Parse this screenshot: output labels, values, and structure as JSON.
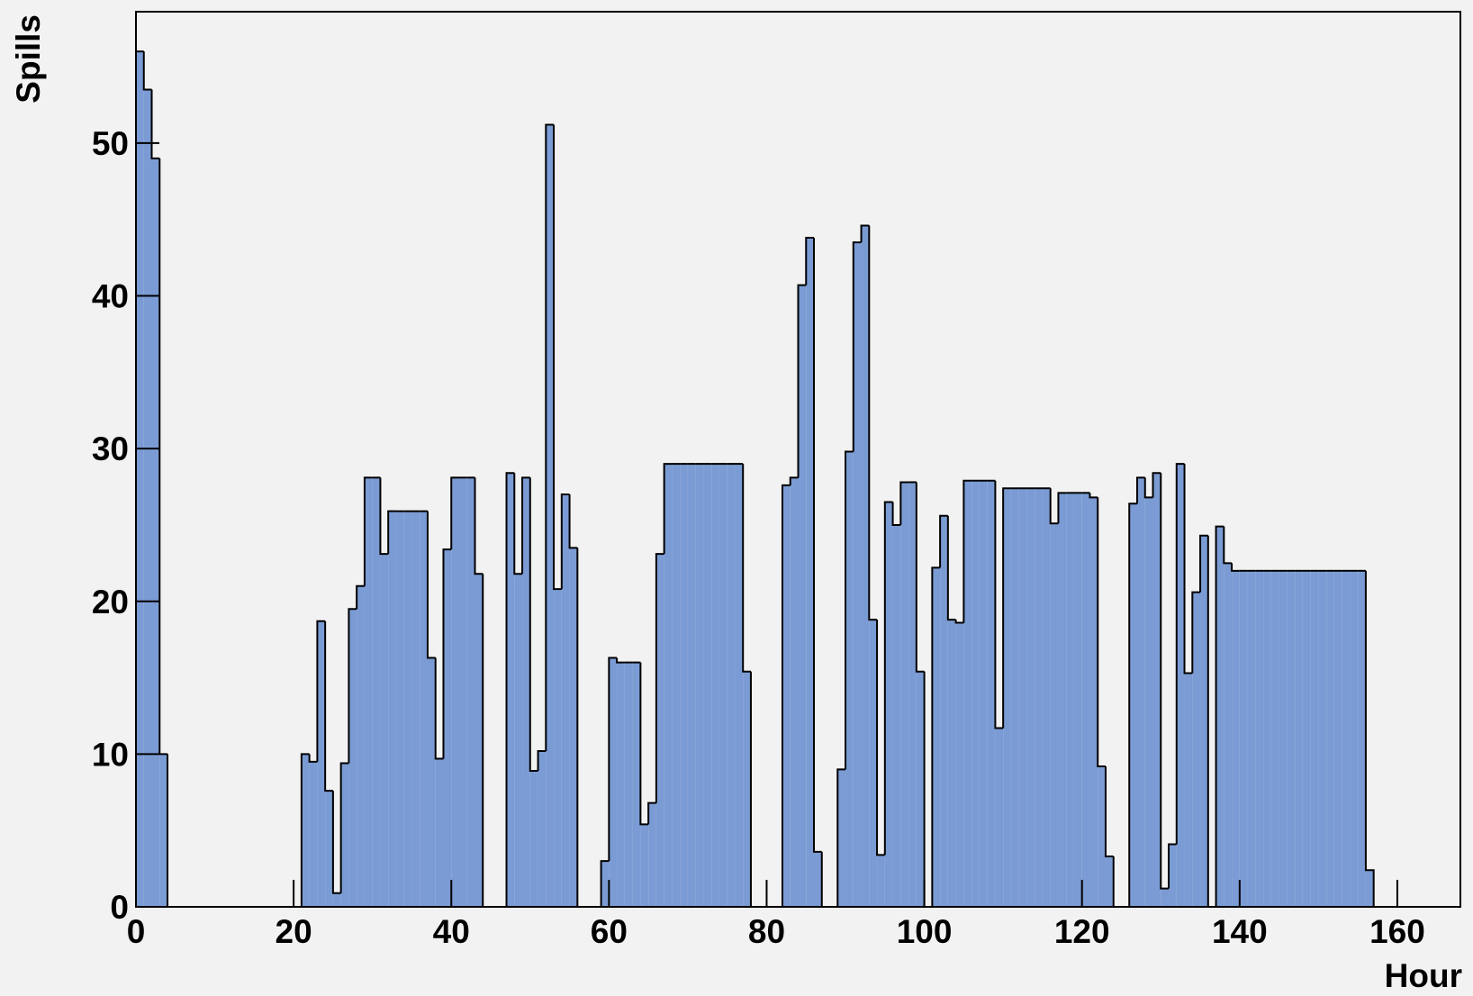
{
  "chart_data": {
    "type": "histogram",
    "x_label": "Hour",
    "y_label": "Spills",
    "bins": [
      0,
      1,
      2,
      3,
      4,
      5,
      6,
      7,
      8,
      9,
      10,
      11,
      12,
      13,
      14,
      15,
      16,
      17,
      18,
      19,
      20,
      21,
      22,
      23,
      24,
      25,
      26,
      27,
      28,
      29,
      30,
      31,
      32,
      33,
      34,
      35,
      36,
      37,
      38,
      39,
      40,
      41,
      42,
      43,
      44,
      45,
      46,
      47,
      48,
      49,
      50,
      51,
      52,
      53,
      54,
      55,
      56,
      57,
      58,
      59,
      60,
      61,
      62,
      63,
      64,
      65,
      66,
      67,
      68,
      69,
      70,
      71,
      72,
      73,
      74,
      75,
      76,
      77,
      78,
      79,
      80,
      81,
      82,
      83,
      84,
      85,
      86,
      87,
      88,
      89,
      90,
      91,
      92,
      93,
      94,
      95,
      96,
      97,
      98,
      99,
      100,
      101,
      102,
      103,
      104,
      105,
      106,
      107,
      108,
      109,
      110,
      111,
      112,
      113,
      114,
      115,
      116,
      117,
      118,
      119,
      120,
      121,
      122,
      123,
      124,
      125,
      126,
      127,
      128,
      129,
      130,
      131,
      132,
      133,
      134,
      135,
      136,
      137,
      138,
      139,
      140,
      141,
      142,
      143,
      144,
      145,
      146,
      147,
      148,
      149,
      150,
      151,
      152,
      153,
      154,
      155,
      156,
      157
    ],
    "values": [
      56,
      53.5,
      49,
      10,
      0,
      0,
      0,
      0,
      0,
      0,
      0,
      0,
      0,
      0,
      0,
      0,
      0,
      0,
      0,
      0,
      0,
      10,
      9.5,
      18.7,
      7.6,
      0.9,
      9.4,
      19.5,
      21,
      28.1,
      28.1,
      23.1,
      25.9,
      25.9,
      25.9,
      25.9,
      25.9,
      16.3,
      9.7,
      23.4,
      28.1,
      28.1,
      28.1,
      21.8,
      0,
      0,
      0,
      28.4,
      21.8,
      28.1,
      8.9,
      10.2,
      51.2,
      20.8,
      27,
      23.5,
      0,
      0,
      0,
      3,
      16.3,
      16,
      16,
      16,
      5.4,
      6.8,
      23.1,
      29,
      29,
      29,
      29,
      29,
      29,
      29,
      29,
      29,
      29,
      15.4,
      0,
      0,
      0,
      0,
      27.6,
      28.1,
      40.7,
      43.8,
      3.6,
      0,
      0,
      9,
      29.8,
      43.5,
      44.6,
      18.8,
      3.4,
      26.5,
      25,
      27.8,
      27.8,
      15.4,
      0,
      22.2,
      25.6,
      18.8,
      18.6,
      27.9,
      27.9,
      27.9,
      27.9,
      11.7,
      27.4,
      27.4,
      27.4,
      27.4,
      27.4,
      27.4,
      25.1,
      27.1,
      27.1,
      27.1,
      27.1,
      26.8,
      9.2,
      3.3,
      0,
      0,
      26.4,
      28.1,
      26.8,
      28.4,
      1.2,
      4.1,
      29,
      15.3,
      20.6,
      24.3,
      0,
      24.9,
      22.5,
      22,
      22,
      22,
      22,
      22,
      22,
      22,
      22,
      22,
      22,
      22,
      22,
      22,
      22,
      22,
      22,
      22,
      2.4
    ],
    "color": "#7b9bd4",
    "xlim": [
      0,
      168
    ],
    "ylim": [
      0,
      58.6
    ],
    "xticks": [
      0,
      20,
      40,
      60,
      80,
      100,
      120,
      140,
      160
    ],
    "yticks": [
      0,
      10,
      20,
      30,
      40,
      50
    ]
  }
}
